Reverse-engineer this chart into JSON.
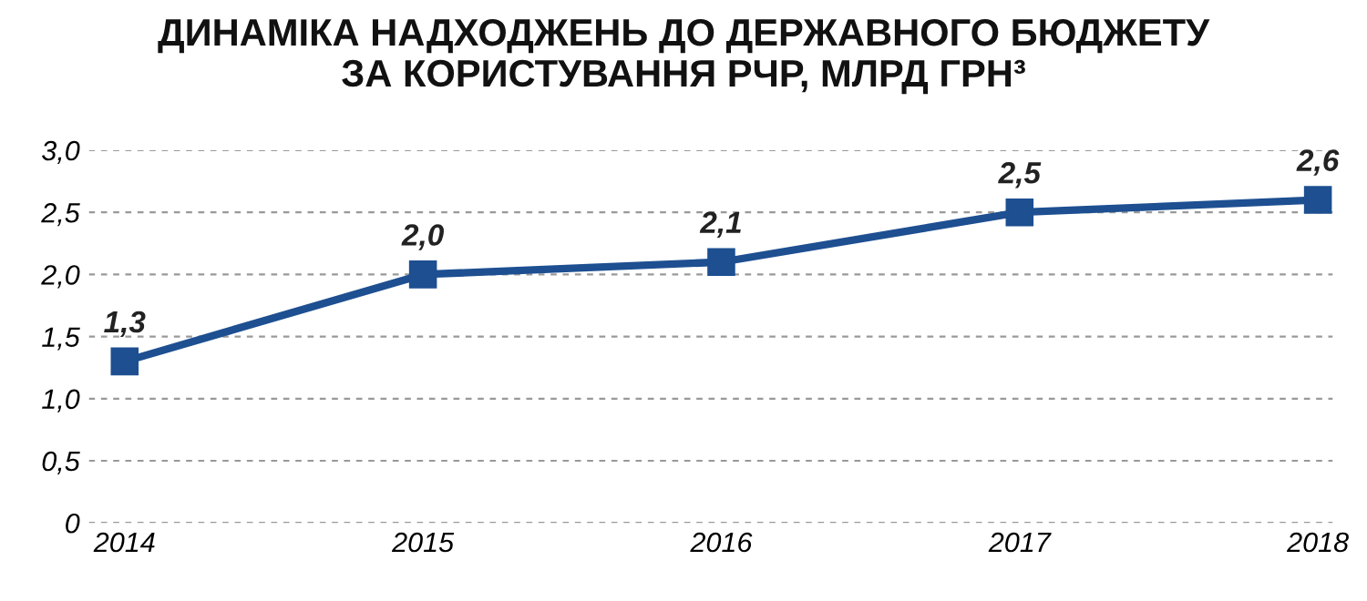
{
  "chart_data": {
    "type": "line",
    "title": "ДИНАМІКА НАДХОДЖЕНЬ ДО ДЕРЖАВНОГО БЮДЖЕТУ\nЗА КОРИСТУВАННЯ РЧР, МЛРД ГРН³",
    "categories": [
      "2014",
      "2015",
      "2016",
      "2017",
      "2018"
    ],
    "series": [
      {
        "color": "#1d4f91",
        "values": [
          1.3,
          2.0,
          2.1,
          2.5,
          2.6
        ],
        "value_labels": [
          "1,3",
          "2,0",
          "2,1",
          "2,5",
          "2,6"
        ]
      }
    ],
    "ylim": [
      0,
      3.0
    ],
    "yticks": [
      0,
      {
        "value": 0.5,
        "label": "0,5"
      },
      {
        "value": 1.0,
        "label": "1,0"
      },
      {
        "value": 1.5,
        "label": "1,5"
      },
      {
        "value": 2.0,
        "label": "2,0"
      },
      {
        "value": 2.5,
        "label": "2,5"
      },
      {
        "value": 3.0,
        "label": "3,0"
      }
    ],
    "grid": "y",
    "marker": "square",
    "line_style": "solid",
    "legend": false
  }
}
